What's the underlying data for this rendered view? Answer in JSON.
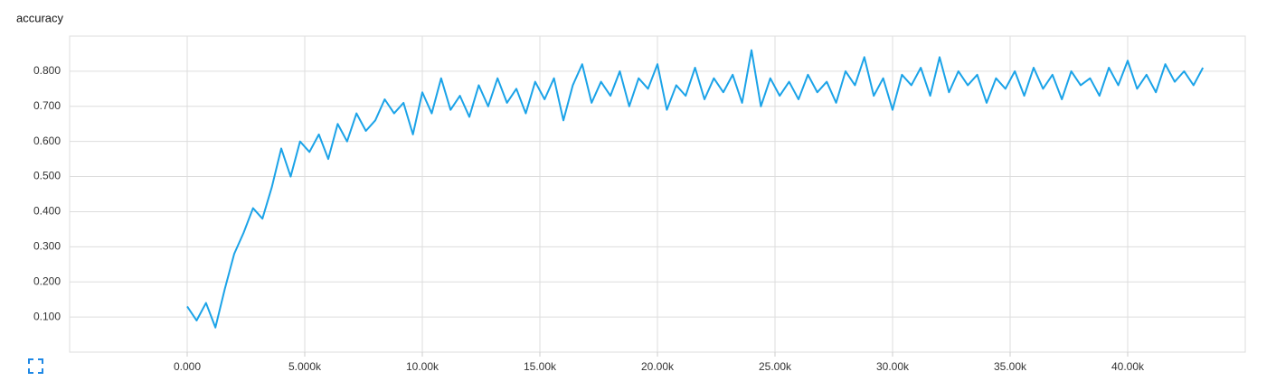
{
  "chart_data": {
    "type": "line",
    "title": "accuracy",
    "color": "#1ba3e8",
    "grid": true,
    "xlim": [
      -5000,
      45000
    ],
    "xticks": [
      {
        "value": 0,
        "label": "0.000"
      },
      {
        "value": 5000,
        "label": "5.000k"
      },
      {
        "value": 10000,
        "label": "10.00k"
      },
      {
        "value": 15000,
        "label": "15.00k"
      },
      {
        "value": 20000,
        "label": "20.00k"
      },
      {
        "value": 25000,
        "label": "25.00k"
      },
      {
        "value": 30000,
        "label": "30.00k"
      },
      {
        "value": 35000,
        "label": "35.00k"
      },
      {
        "value": 40000,
        "label": "40.00k"
      }
    ],
    "ylim": [
      0,
      0.9
    ],
    "yticks": [
      {
        "value": 0.1,
        "label": "0.100"
      },
      {
        "value": 0.2,
        "label": "0.200"
      },
      {
        "value": 0.3,
        "label": "0.300"
      },
      {
        "value": 0.4,
        "label": "0.400"
      },
      {
        "value": 0.5,
        "label": "0.500"
      },
      {
        "value": 0.6,
        "label": "0.600"
      },
      {
        "value": 0.7,
        "label": "0.700"
      },
      {
        "value": 0.8,
        "label": "0.800"
      }
    ],
    "x": [
      0,
      400,
      800,
      1200,
      1600,
      2000,
      2400,
      2800,
      3200,
      3600,
      4000,
      4400,
      4800,
      5200,
      5600,
      6000,
      6400,
      6800,
      7200,
      7600,
      8000,
      8400,
      8800,
      9200,
      9600,
      10000,
      10400,
      10800,
      11200,
      11600,
      12000,
      12400,
      12800,
      13200,
      13600,
      14000,
      14400,
      14800,
      15200,
      15600,
      16000,
      16400,
      16800,
      17200,
      17600,
      18000,
      18400,
      18800,
      19200,
      19600,
      20000,
      20400,
      20800,
      21200,
      21600,
      22000,
      22400,
      22800,
      23200,
      23600,
      24000,
      24400,
      24800,
      25200,
      25600,
      26000,
      26400,
      26800,
      27200,
      27600,
      28000,
      28400,
      28800,
      29200,
      29600,
      30000,
      30400,
      30800,
      31200,
      31600,
      32000,
      32400,
      32800,
      33200,
      33600,
      34000,
      34400,
      34800,
      35200,
      35600,
      36000,
      36400,
      36800,
      37200,
      37600,
      38000,
      38400,
      38800,
      39200,
      39600,
      40000,
      40400,
      40800,
      41200,
      41600,
      42000,
      42400,
      42800,
      43200
    ],
    "values": [
      0.13,
      0.09,
      0.14,
      0.07,
      0.18,
      0.28,
      0.34,
      0.41,
      0.38,
      0.47,
      0.58,
      0.5,
      0.6,
      0.57,
      0.62,
      0.55,
      0.65,
      0.6,
      0.68,
      0.63,
      0.66,
      0.72,
      0.68,
      0.71,
      0.62,
      0.74,
      0.68,
      0.78,
      0.69,
      0.73,
      0.67,
      0.76,
      0.7,
      0.78,
      0.71,
      0.75,
      0.68,
      0.77,
      0.72,
      0.78,
      0.66,
      0.76,
      0.82,
      0.71,
      0.77,
      0.73,
      0.8,
      0.7,
      0.78,
      0.75,
      0.82,
      0.69,
      0.76,
      0.73,
      0.81,
      0.72,
      0.78,
      0.74,
      0.79,
      0.71,
      0.86,
      0.7,
      0.78,
      0.73,
      0.77,
      0.72,
      0.79,
      0.74,
      0.77,
      0.71,
      0.8,
      0.76,
      0.84,
      0.73,
      0.78,
      0.69,
      0.79,
      0.76,
      0.81,
      0.73,
      0.84,
      0.74,
      0.8,
      0.76,
      0.79,
      0.71,
      0.78,
      0.75,
      0.8,
      0.73,
      0.81,
      0.75,
      0.79,
      0.72,
      0.8,
      0.76,
      0.78,
      0.73,
      0.81,
      0.76,
      0.83,
      0.75,
      0.79,
      0.74,
      0.82,
      0.77,
      0.8,
      0.76,
      0.81
    ]
  }
}
